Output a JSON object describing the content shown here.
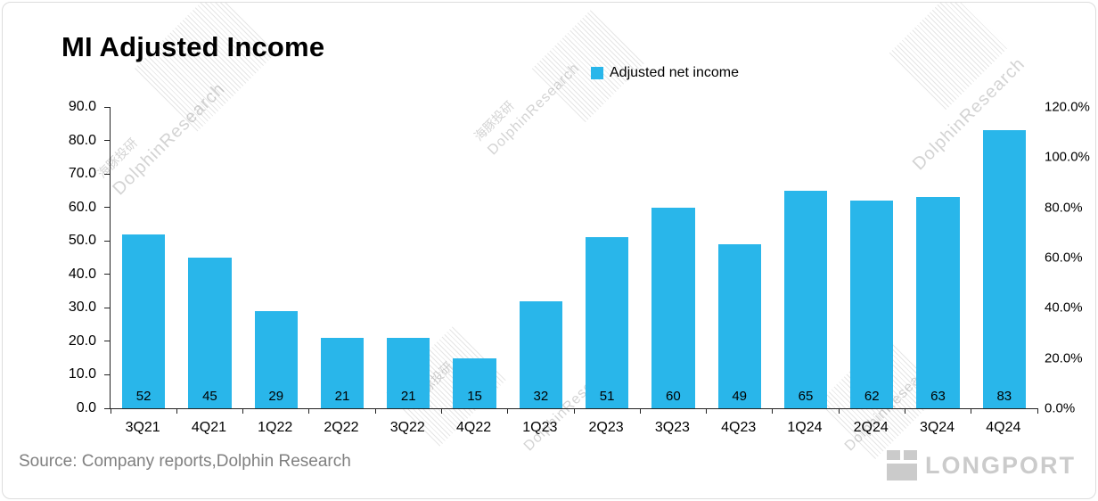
{
  "title": "MI Adjusted Income",
  "legend": {
    "label": "Adjusted net income",
    "color": "#29b6ea"
  },
  "source": "Source: Company reports,Dolphin Research",
  "logo": "LONGPORT",
  "watermark": {
    "en": "DolphinResearch",
    "zh": "海豚投研"
  },
  "chart_data": {
    "type": "bar",
    "title": "MI Adjusted Income",
    "categories": [
      "3Q21",
      "4Q21",
      "1Q22",
      "2Q22",
      "3Q22",
      "4Q22",
      "1Q23",
      "2Q23",
      "3Q23",
      "4Q23",
      "1Q24",
      "2Q24",
      "3Q24",
      "4Q24"
    ],
    "series": [
      {
        "name": "Adjusted net income",
        "color": "#29b6ea",
        "axis": "left",
        "values": [
          52,
          45,
          29,
          21,
          21,
          15,
          32,
          51,
          60,
          49,
          65,
          62,
          63,
          83
        ]
      }
    ],
    "data_labels": [
      52,
      45,
      29,
      21,
      21,
      15,
      32,
      51,
      60,
      49,
      65,
      62,
      63,
      83
    ],
    "xlabel": "",
    "ylabel": "",
    "left_axis": {
      "min": 0,
      "max": 90,
      "step": 10,
      "tick_labels": [
        "0.0",
        "10.0",
        "20.0",
        "30.0",
        "40.0",
        "50.0",
        "60.0",
        "70.0",
        "80.0",
        "90.0"
      ]
    },
    "right_axis": {
      "min": 0,
      "max": 120,
      "step": 20,
      "tick_labels": [
        "0.0%",
        "20.0%",
        "40.0%",
        "60.0%",
        "80.0%",
        "100.0%",
        "120.0%"
      ]
    },
    "grid": false,
    "legend_position": "top-center",
    "data_label_position": "inside-base"
  }
}
